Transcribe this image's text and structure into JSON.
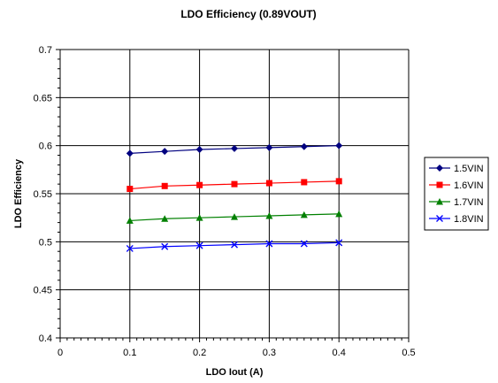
{
  "chart_data": {
    "type": "line",
    "title": "LDO Efficiency (0.89VOUT)",
    "xlabel": "LDO Iout (A)",
    "ylabel": "LDO Efficiency",
    "xlim": [
      0,
      0.5
    ],
    "ylim": [
      0.4,
      0.7
    ],
    "x_ticks": [
      "0",
      "0.1",
      "0.2",
      "0.3",
      "0.4",
      "0.5"
    ],
    "y_ticks": [
      "0.4",
      "0.45",
      "0.5",
      "0.55",
      "0.6",
      "0.65",
      "0.7"
    ],
    "grid": true,
    "legend_position": "right",
    "x": [
      0.1,
      0.15,
      0.2,
      0.25,
      0.3,
      0.35,
      0.4
    ],
    "series": [
      {
        "name": "1.5VIN",
        "color": "#000080",
        "marker": "diamond",
        "values": [
          0.592,
          0.594,
          0.596,
          0.597,
          0.598,
          0.599,
          0.6
        ]
      },
      {
        "name": "1.6VIN",
        "color": "#ff0000",
        "marker": "square",
        "values": [
          0.555,
          0.558,
          0.559,
          0.56,
          0.561,
          0.562,
          0.563
        ]
      },
      {
        "name": "1.7VIN",
        "color": "#008000",
        "marker": "triangle",
        "values": [
          0.522,
          0.524,
          0.525,
          0.526,
          0.527,
          0.528,
          0.529
        ]
      },
      {
        "name": "1.8VIN",
        "color": "#0000ff",
        "marker": "x",
        "values": [
          0.493,
          0.495,
          0.496,
          0.497,
          0.498,
          0.498,
          0.499
        ]
      }
    ]
  }
}
